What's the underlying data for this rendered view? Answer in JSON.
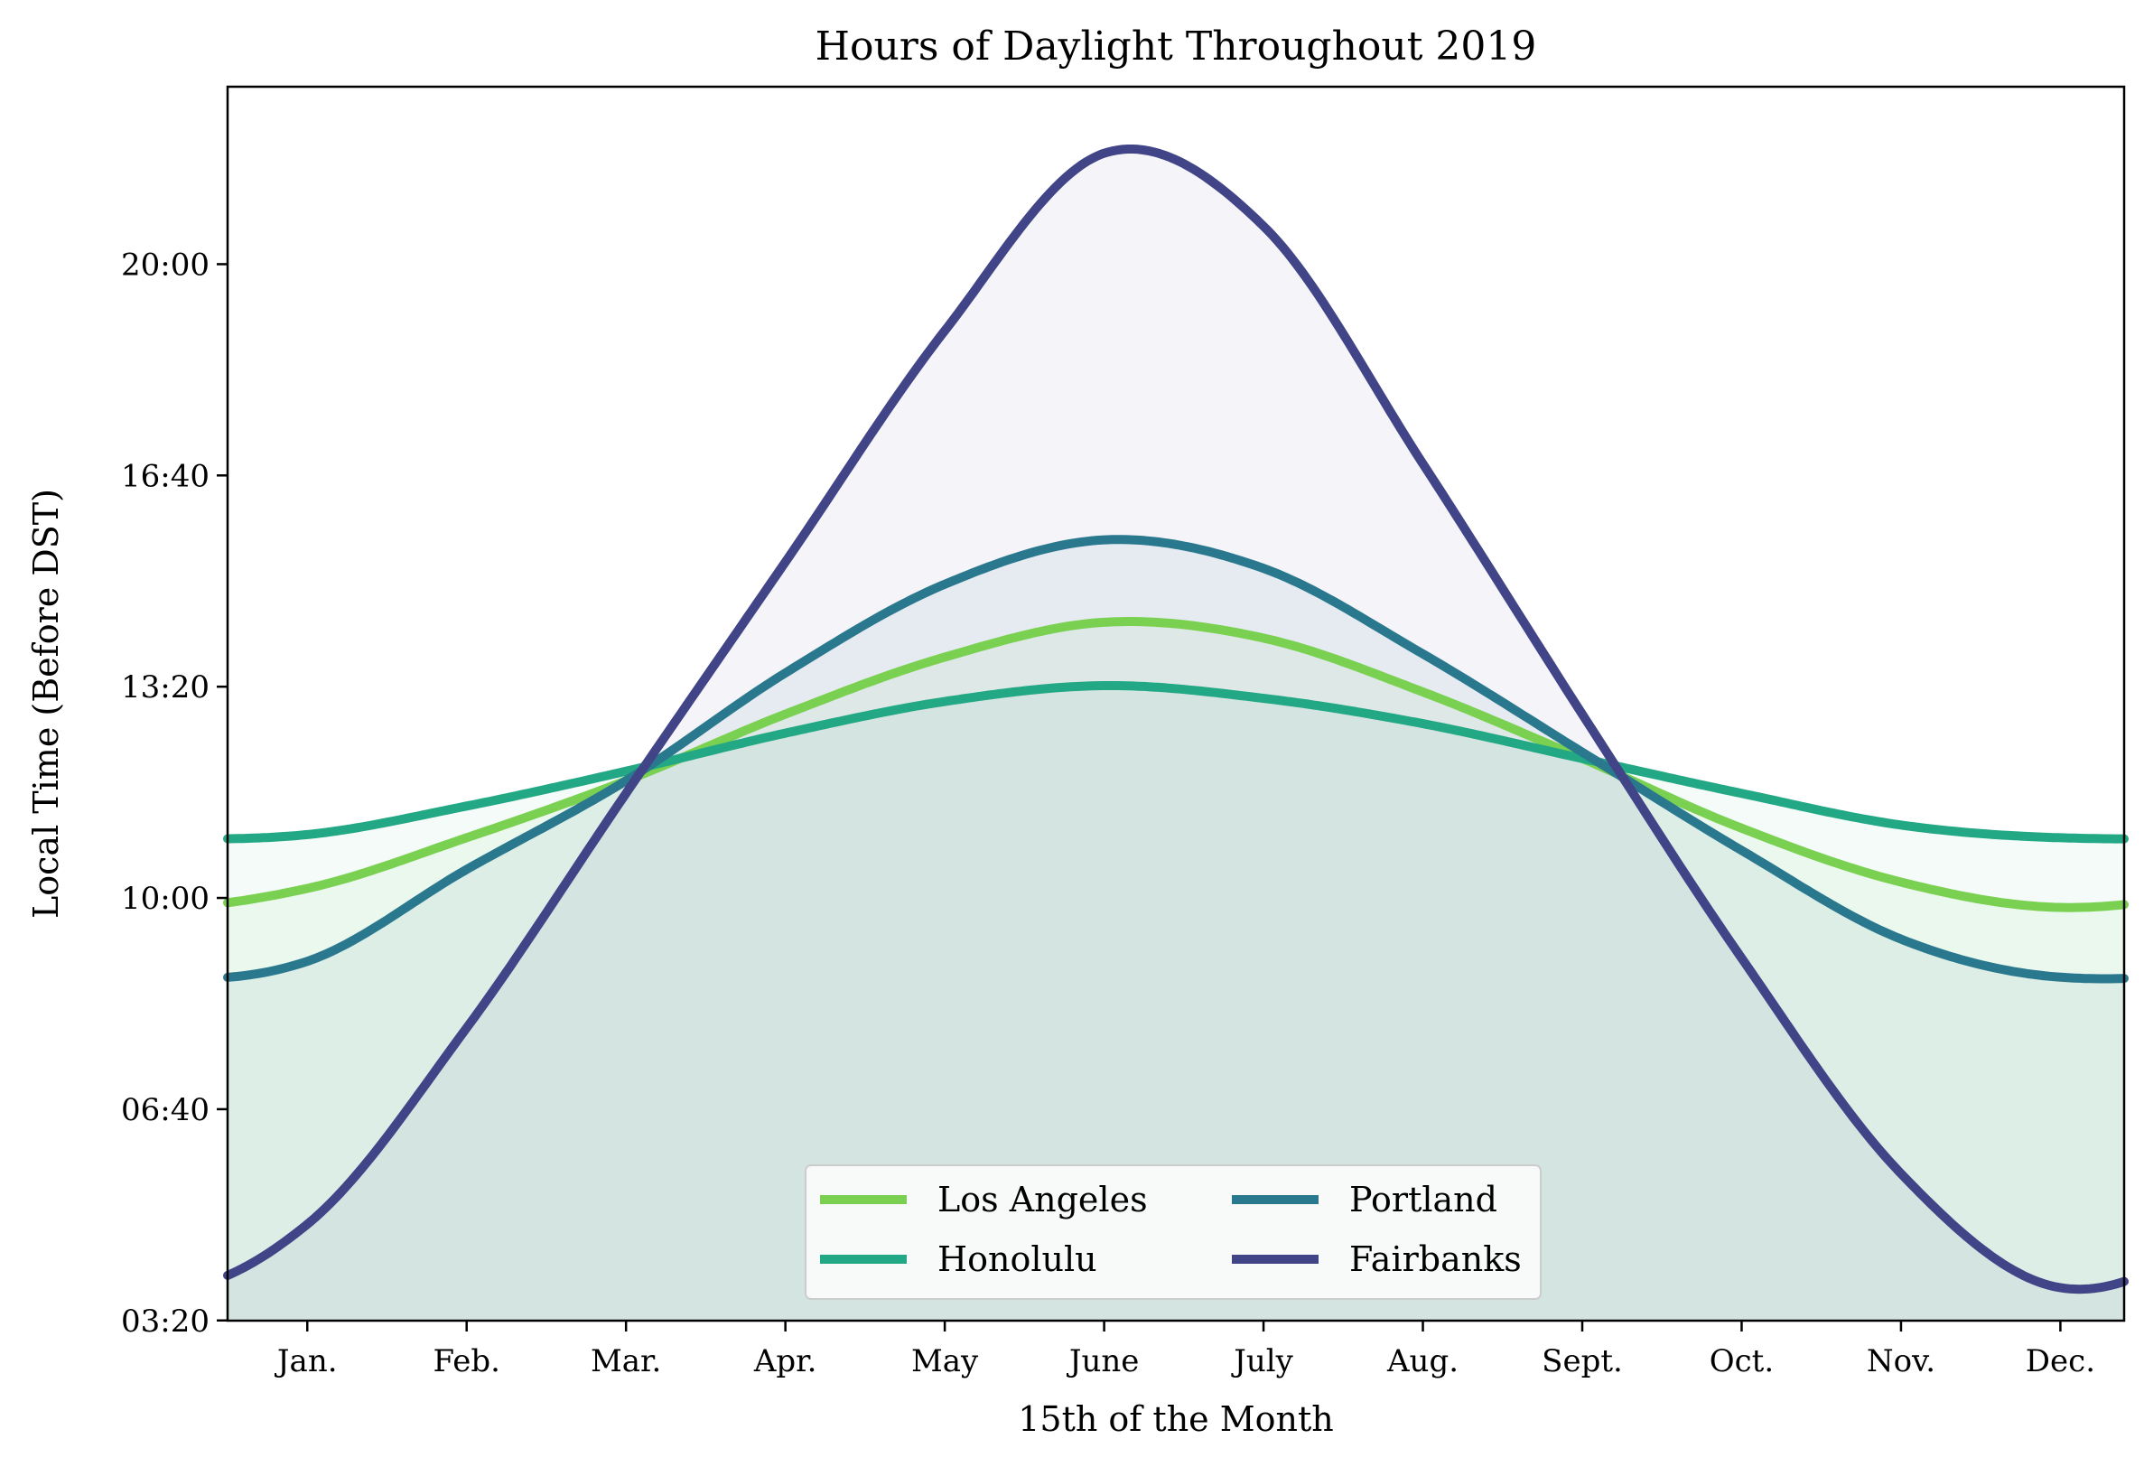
{
  "chart_data": {
    "type": "line",
    "title": "Hours of Daylight Throughout 2019",
    "xlabel": "15th of the Month",
    "ylabel": "Local Time (Before DST)",
    "categories": [
      "Jan.",
      "Feb.",
      "Mar.",
      "Apr.",
      "May",
      "June",
      "July",
      "Aug.",
      "Sept.",
      "Oct.",
      "Nov.",
      "Dec."
    ],
    "x": [
      1,
      2,
      3,
      4,
      5,
      6,
      7,
      8,
      9,
      10,
      11,
      12
    ],
    "xlim": [
      0.5,
      12.4
    ],
    "y_unit": "hours",
    "ylim": [
      3.33,
      22.8
    ],
    "y_ticks": [
      3.3333,
      6.6667,
      10.0,
      13.3333,
      16.6667,
      20.0
    ],
    "y_tick_labels": [
      "03:20",
      "06:40",
      "10:00",
      "13:20",
      "16:40",
      "20:00"
    ],
    "grid": false,
    "legend": {
      "placement": "lower-center",
      "columns": 2
    },
    "series": [
      {
        "name": "Los Angeles",
        "color": "#7ad151",
        "fill_alpha": 0.07,
        "values": [
          10.15,
          10.95,
          11.85,
          12.9,
          13.8,
          14.35,
          14.1,
          13.25,
          12.2,
          11.1,
          10.25,
          9.85
        ]
      },
      {
        "name": "Honolulu",
        "color": "#22a884",
        "fill_alpha": 0.05,
        "values": [
          11.0,
          11.45,
          12.0,
          12.6,
          13.1,
          13.35,
          13.15,
          12.75,
          12.2,
          11.65,
          11.15,
          10.95
        ]
      },
      {
        "name": "Portland",
        "color": "#2a788e",
        "fill_alpha": 0.07,
        "values": [
          9.0,
          10.45,
          11.85,
          13.55,
          14.95,
          15.65,
          15.2,
          13.85,
          12.3,
          10.75,
          9.35,
          8.75
        ]
      },
      {
        "name": "Fairbanks",
        "color": "#414487",
        "fill_alpha": 0.05,
        "values": [
          4.85,
          7.95,
          11.65,
          15.3,
          18.95,
          21.75,
          20.6,
          16.85,
          12.9,
          9.05,
          5.65,
          3.85
        ]
      }
    ]
  }
}
